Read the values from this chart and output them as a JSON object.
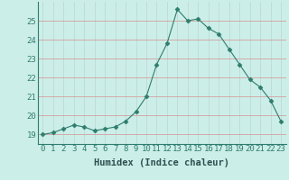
{
  "x": [
    0,
    1,
    2,
    3,
    4,
    5,
    6,
    7,
    8,
    9,
    10,
    11,
    12,
    13,
    14,
    15,
    16,
    17,
    18,
    19,
    20,
    21,
    22,
    23
  ],
  "y": [
    19.0,
    19.1,
    19.3,
    19.5,
    19.4,
    19.2,
    19.3,
    19.4,
    19.7,
    20.2,
    21.0,
    22.7,
    23.8,
    25.6,
    25.0,
    25.1,
    24.6,
    24.3,
    23.5,
    22.7,
    21.9,
    21.5,
    20.8,
    19.7
  ],
  "line_color": "#2e7d6e",
  "marker": "D",
  "marker_size": 2.5,
  "bg_color": "#cceee8",
  "grid_color_h": "#d4a0a0",
  "grid_color_v": "#c0d8d8",
  "xlabel": "Humidex (Indice chaleur)",
  "ylim": [
    18.5,
    26.0
  ],
  "xlim": [
    -0.5,
    23.5
  ],
  "yticks": [
    19,
    20,
    21,
    22,
    23,
    24,
    25
  ],
  "xticks": [
    0,
    1,
    2,
    3,
    4,
    5,
    6,
    7,
    8,
    9,
    10,
    11,
    12,
    13,
    14,
    15,
    16,
    17,
    18,
    19,
    20,
    21,
    22,
    23
  ],
  "tick_fontsize": 6.5,
  "xlabel_fontsize": 7.5,
  "tick_color": "#2e7d6e",
  "xlabel_color": "#2e5050"
}
